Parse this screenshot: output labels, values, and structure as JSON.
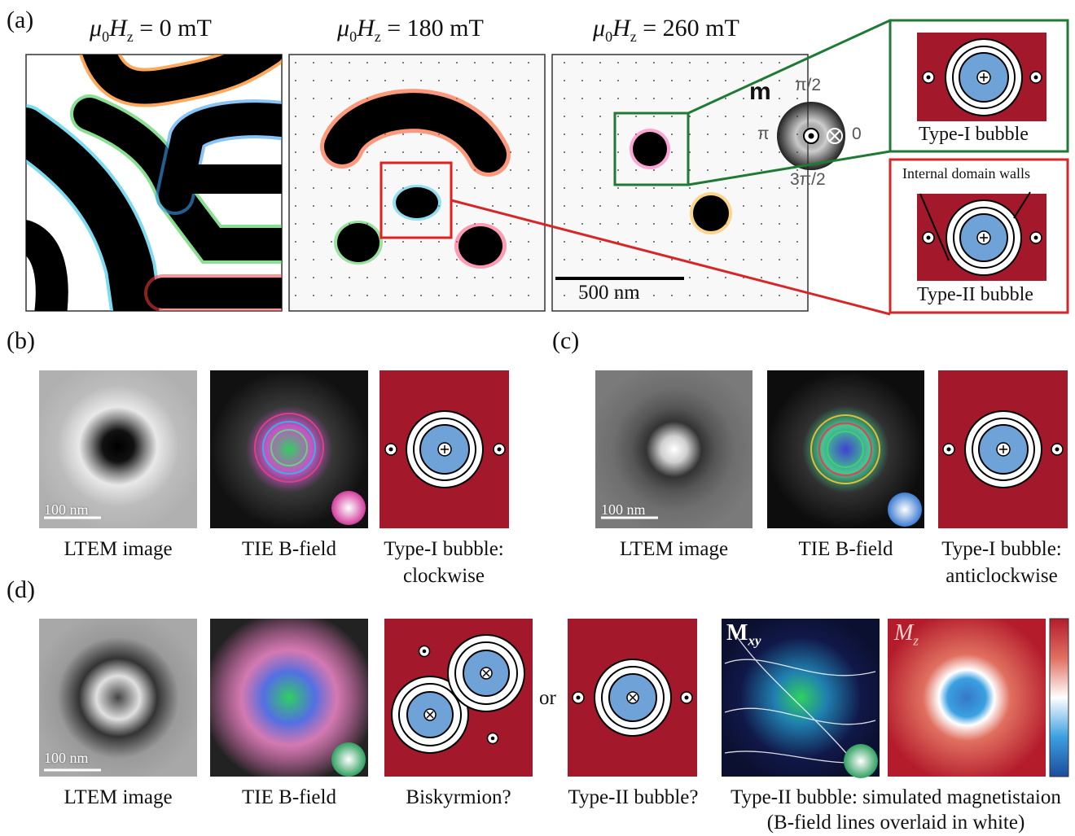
{
  "figure": {
    "panel_labels": {
      "a": "(a)",
      "b": "(b)",
      "c": "(c)",
      "d": "(d)"
    },
    "a": {
      "field_titles": [
        {
          "mu": "μ",
          "sub0": "0",
          "H": "H",
          "subz": "z",
          "value": " = 0 mT"
        },
        {
          "mu": "μ",
          "sub0": "0",
          "H": "H",
          "subz": "z",
          "value": " = 180 mT"
        },
        {
          "mu": "μ",
          "sub0": "0",
          "H": "H",
          "subz": "z",
          "value": " = 260 mT"
        }
      ],
      "scalebar": "500 nm",
      "color_wheel": {
        "label": "m",
        "top": "π/2",
        "left": "π",
        "right": "0",
        "bottom": "3π/2"
      },
      "type1_label": "Type-I bubble",
      "type2_label": "Type-II bubble",
      "internal_walls_label": "Internal domain walls"
    },
    "b": {
      "scalebar": "100 nm",
      "captions": [
        "LTEM image",
        "TIE B-field",
        "Type-I bubble:",
        "clockwise"
      ]
    },
    "c": {
      "scalebar": "100 nm",
      "captions": [
        "LTEM image",
        "TIE B-field",
        "Type-I bubble:",
        "anticlockwise"
      ]
    },
    "d": {
      "scalebar": "100 nm",
      "or_text": "or",
      "mxy_label": "M",
      "mxy_sub": "xy",
      "mz_label": "M",
      "mz_sub": "z",
      "captions": [
        "LTEM image",
        "TIE B-field",
        "Biskyrmion?",
        "Type-II bubble?",
        "Type-II bubble: simulated magnetistaion",
        "(B-field lines overlaid in white)"
      ]
    },
    "colors": {
      "bubble_bg": "#a3182b",
      "core": "#6fa3d8",
      "type1_frame": "#1e7a34",
      "type2_frame": "#d62728"
    }
  }
}
